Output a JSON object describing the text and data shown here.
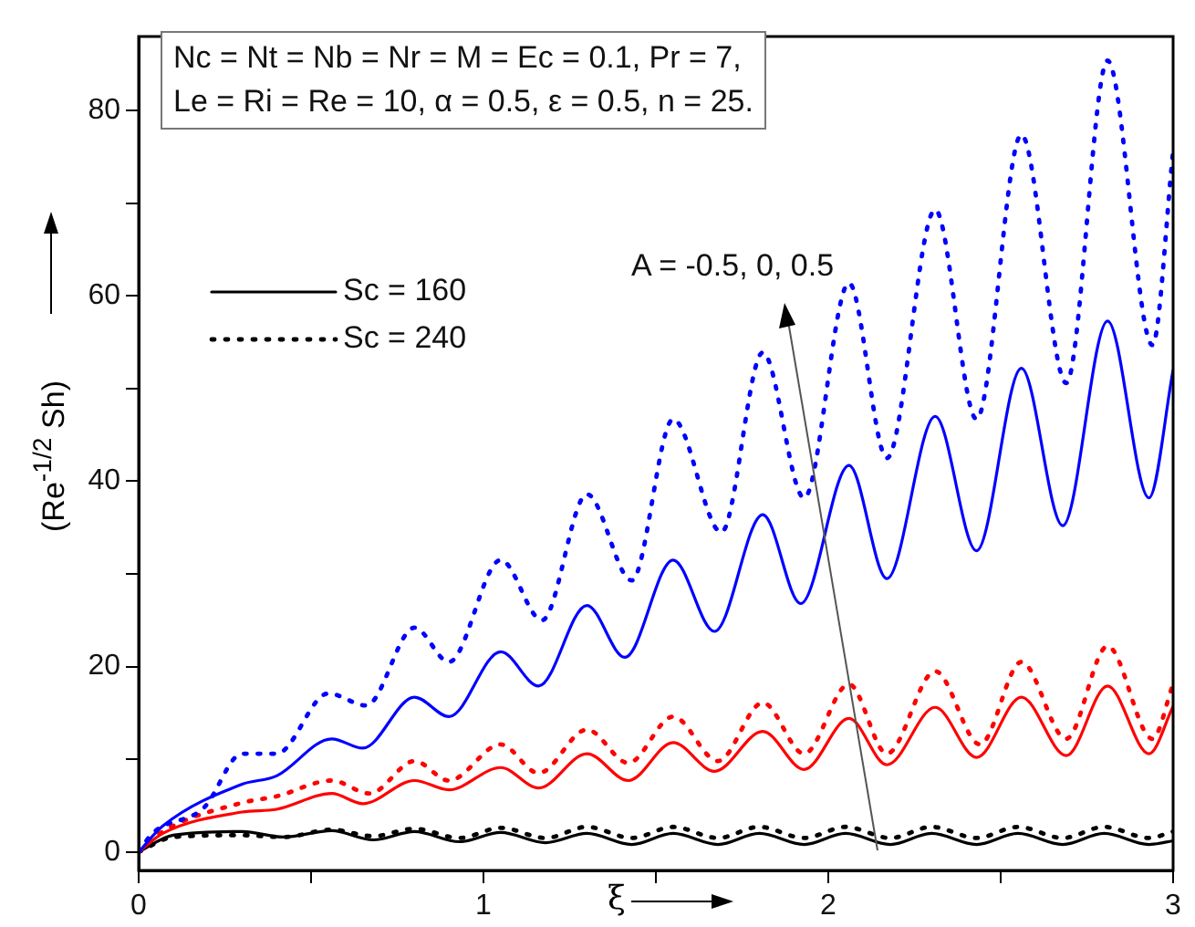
{
  "chart_data": {
    "type": "line",
    "xlabel": "ξ",
    "ylabel": "(Re$^{-1/2}$ Sh)",
    "annotations": [
      "Nc = Nt = Nb = Nr = M = Ec = 0.1, Pr = 7,",
      "Le = Ri = Re = 10, α = 0.5, ε = 0.5, n = 25.",
      "A = -0.5, 0, 0.5"
    ],
    "xlim": [
      0,
      3
    ],
    "xticks": [
      0,
      {
        "value": 0.5,
        "label": null
      },
      1,
      {
        "value": 1.5,
        "label": null
      },
      2,
      {
        "value": 2.5,
        "label": null
      },
      3
    ],
    "ylim": [
      -2,
      88
    ],
    "yticks": [
      0,
      {
        "value": 10,
        "label": null
      },
      20,
      {
        "value": 30,
        "label": null
      },
      40,
      {
        "value": 50,
        "label": null
      },
      60,
      {
        "value": 70,
        "label": null
      },
      80
    ],
    "grid": false,
    "legend": "top left",
    "marker": "none",
    "series": [
      {
        "color": "#0000ff",
        "line_style": "solid",
        "x": [
          0,
          0.07,
          0.3,
          0.4,
          0.56,
          0.65,
          0.8,
          0.9,
          1.05,
          1.16,
          1.3,
          1.41,
          1.55,
          1.67,
          1.81,
          1.92,
          2.06,
          2.17,
          2.31,
          2.43,
          2.56,
          2.68,
          2.81,
          2.93,
          3
        ],
        "values": [
          0,
          2.8,
          7.3,
          8.2,
          12.2,
          11.2,
          16.7,
          14.6,
          21.6,
          17.9,
          26.6,
          21,
          31.5,
          23.8,
          36.4,
          26.8,
          41.7,
          29.5,
          47,
          32.5,
          52.2,
          35.2,
          57.3,
          38.2,
          52
        ]
      },
      {
        "color": "#0000ff",
        "line_style": "dotted",
        "x": [
          0,
          0.04,
          0.19,
          0.3,
          0.4,
          0.55,
          0.66,
          0.8,
          0.9,
          1.05,
          1.17,
          1.3,
          1.43,
          1.55,
          1.69,
          1.81,
          1.93,
          2.06,
          2.17,
          2.31,
          2.43,
          2.56,
          2.69,
          2.81,
          2.94,
          3
        ],
        "values": [
          0,
          2,
          4.8,
          10.6,
          10.6,
          17.1,
          15.8,
          24.2,
          20.5,
          31.5,
          25,
          38.6,
          29.3,
          46.7,
          34.5,
          53.9,
          38.2,
          61.4,
          42.5,
          69.3,
          46.7,
          77.4,
          50.6,
          85.4,
          54.7,
          75.6
        ]
      },
      {
        "color": "#ff0000",
        "line_style": "solid",
        "x": [
          0,
          0.07,
          0.3,
          0.4,
          0.56,
          0.65,
          0.8,
          0.9,
          1.05,
          1.16,
          1.3,
          1.42,
          1.55,
          1.67,
          1.81,
          1.93,
          2.06,
          2.17,
          2.31,
          2.43,
          2.56,
          2.69,
          2.81,
          2.93,
          3
        ],
        "values": [
          0,
          2,
          4.3,
          4.6,
          6.3,
          5.2,
          7.7,
          6.7,
          9.1,
          6.9,
          10.6,
          7.7,
          11.8,
          8.7,
          13,
          8.9,
          14.4,
          9.4,
          15.6,
          10.2,
          16.7,
          10.4,
          17.9,
          10.6,
          15.7
        ]
      },
      {
        "color": "#ff0000",
        "line_style": "dotted",
        "x": [
          0,
          0.07,
          0.3,
          0.4,
          0.56,
          0.67,
          0.8,
          0.9,
          1.05,
          1.16,
          1.3,
          1.42,
          1.55,
          1.68,
          1.81,
          1.93,
          2.06,
          2.17,
          2.31,
          2.44,
          2.56,
          2.69,
          2.81,
          2.94,
          3
        ],
        "values": [
          0,
          2.2,
          5.3,
          6,
          7.7,
          6.3,
          9.8,
          7.7,
          11.6,
          8.5,
          13.2,
          9.6,
          14.6,
          9.8,
          16.1,
          10.6,
          18.1,
          10.6,
          19.5,
          11.6,
          20.5,
          12.2,
          22.2,
          12.2,
          18.1
        ]
      },
      {
        "name": "Sc = 160",
        "color": "#000000",
        "line_style": "solid",
        "x": [
          0,
          0.1,
          0.3,
          0.42,
          0.56,
          0.68,
          0.8,
          0.93,
          1.05,
          1.18,
          1.3,
          1.43,
          1.55,
          1.68,
          1.8,
          1.93,
          2.05,
          2.18,
          2.3,
          2.43,
          2.55,
          2.68,
          2.8,
          2.93,
          3
        ],
        "values": [
          0,
          1.8,
          2.2,
          1.6,
          2.3,
          1.3,
          2.2,
          1.1,
          2.1,
          1,
          2,
          0.8,
          2,
          0.8,
          2,
          0.8,
          2,
          0.8,
          2,
          0.8,
          2,
          0.8,
          2,
          0.8,
          1.2
        ]
      },
      {
        "name": "Sc = 240",
        "color": "#000000",
        "line_style": "dotted",
        "x": [
          0,
          0.1,
          0.3,
          0.42,
          0.56,
          0.68,
          0.8,
          0.93,
          1.05,
          1.18,
          1.3,
          1.43,
          1.55,
          1.68,
          1.8,
          1.93,
          2.05,
          2.18,
          2.3,
          2.43,
          2.55,
          2.68,
          2.8,
          2.93,
          3
        ],
        "values": [
          0,
          1.6,
          1.8,
          1.6,
          2.4,
          1.7,
          2.5,
          1.5,
          2.6,
          1.5,
          2.7,
          1.5,
          2.7,
          1.5,
          2.7,
          1.5,
          2.7,
          1.5,
          2.7,
          1.5,
          2.7,
          1.5,
          2.7,
          1.5,
          2.2
        ]
      }
    ]
  }
}
